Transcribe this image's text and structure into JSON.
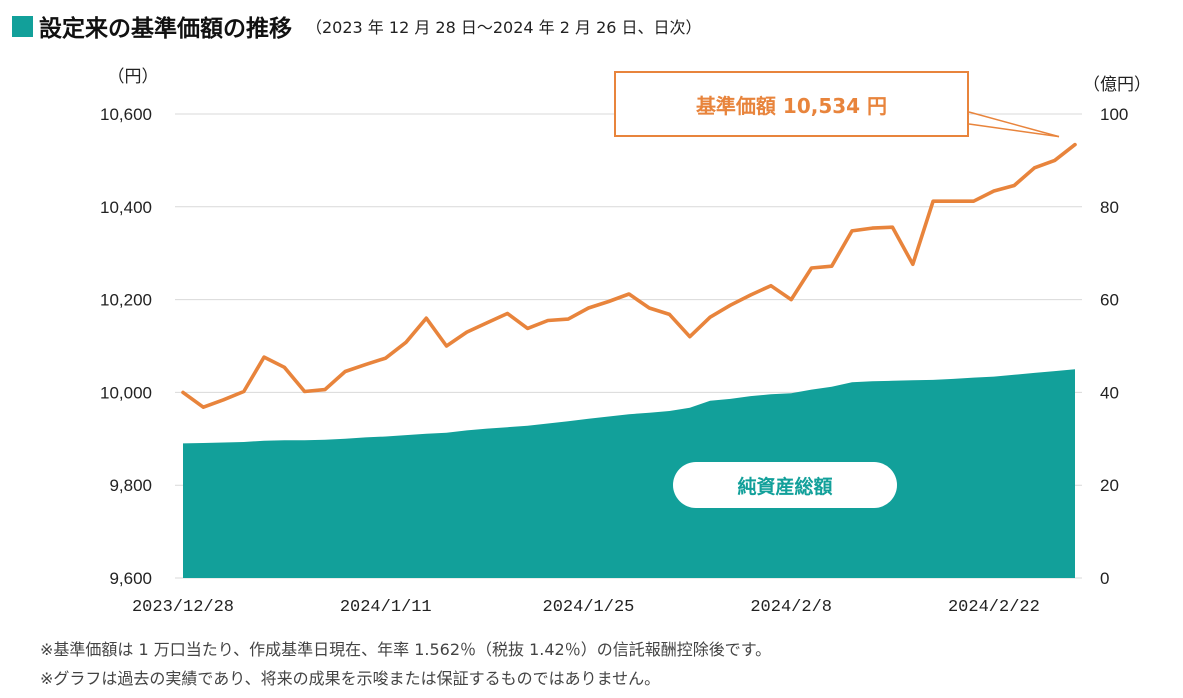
{
  "header": {
    "title": "設定来の基準価額の推移",
    "subtitle": "（2023 年 12 月 28 日～2024 年 2 月 26 日、日次）"
  },
  "colors": {
    "nav_line": "#e8843c",
    "area": "#12a09a",
    "grid": "#d9d9d9"
  },
  "chart_data": {
    "type": "line+area",
    "title": "設定来の基準価額の推移",
    "left_axis": {
      "unit_label": "（円）",
      "range": [
        9600,
        10600
      ],
      "ticks": [
        9600,
        9800,
        10000,
        10200,
        10400,
        10600
      ],
      "tick_labels": [
        "9,600",
        "9,800",
        "10,000",
        "10,200",
        "10,400",
        "10,600"
      ]
    },
    "right_axis": {
      "unit_label": "（億円）",
      "range": [
        0,
        100
      ],
      "ticks": [
        0,
        20,
        40,
        60,
        80,
        100
      ],
      "tick_labels": [
        "0",
        "20",
        "40",
        "60",
        "80",
        "100"
      ]
    },
    "x_tick_labels": [
      {
        "label": "2023/12/28",
        "index": 0
      },
      {
        "label": "2024/1/11",
        "index": 10
      },
      {
        "label": "2024/1/25",
        "index": 20
      },
      {
        "label": "2024/2/8",
        "index": 30
      },
      {
        "label": "2024/2/22",
        "index": 40
      }
    ],
    "series": [
      {
        "name": "基準価額",
        "axis": "left",
        "style": "line",
        "values": [
          10000,
          9968,
          9984,
          10002,
          10076,
          10054,
          10002,
          10006,
          10045,
          10060,
          10074,
          10108,
          10160,
          10100,
          10130,
          10150,
          10170,
          10138,
          10155,
          10158,
          10182,
          10196,
          10212,
          10182,
          10168,
          10120,
          10162,
          10188,
          10210,
          10230,
          10200,
          10268,
          10272,
          10348,
          10354,
          10356,
          10276,
          10412,
          10412,
          10412,
          10434,
          10446,
          10484,
          10500,
          10534
        ]
      },
      {
        "name": "純資産総額",
        "axis": "right",
        "style": "area",
        "values": [
          29.0,
          29.1,
          29.2,
          29.3,
          29.6,
          29.7,
          29.7,
          29.8,
          30.0,
          30.3,
          30.5,
          30.8,
          31.1,
          31.3,
          31.8,
          32.2,
          32.5,
          32.8,
          33.3,
          33.8,
          34.3,
          34.8,
          35.3,
          35.6,
          36.0,
          36.7,
          38.2,
          38.6,
          39.2,
          39.6,
          39.8,
          40.6,
          41.2,
          42.2,
          42.4,
          42.5,
          42.6,
          42.7,
          42.9,
          43.2,
          43.4,
          43.8,
          44.2,
          44.6,
          45.0
        ]
      }
    ],
    "annotations": [
      {
        "text": "基準価額  10,534 円",
        "target_series": "基準価額",
        "target_index": 44
      },
      {
        "text": "純資産総額",
        "target_series": "純資産総額"
      }
    ]
  },
  "footnotes": [
    "※基準価額は 1 万口当たり、作成基準日現在、年率 1.562％（税抜 1.42％）の信託報酬控除後です。",
    "※グラフは過去の実績であり、将来の成果を示唆または保証するものではありません。"
  ]
}
